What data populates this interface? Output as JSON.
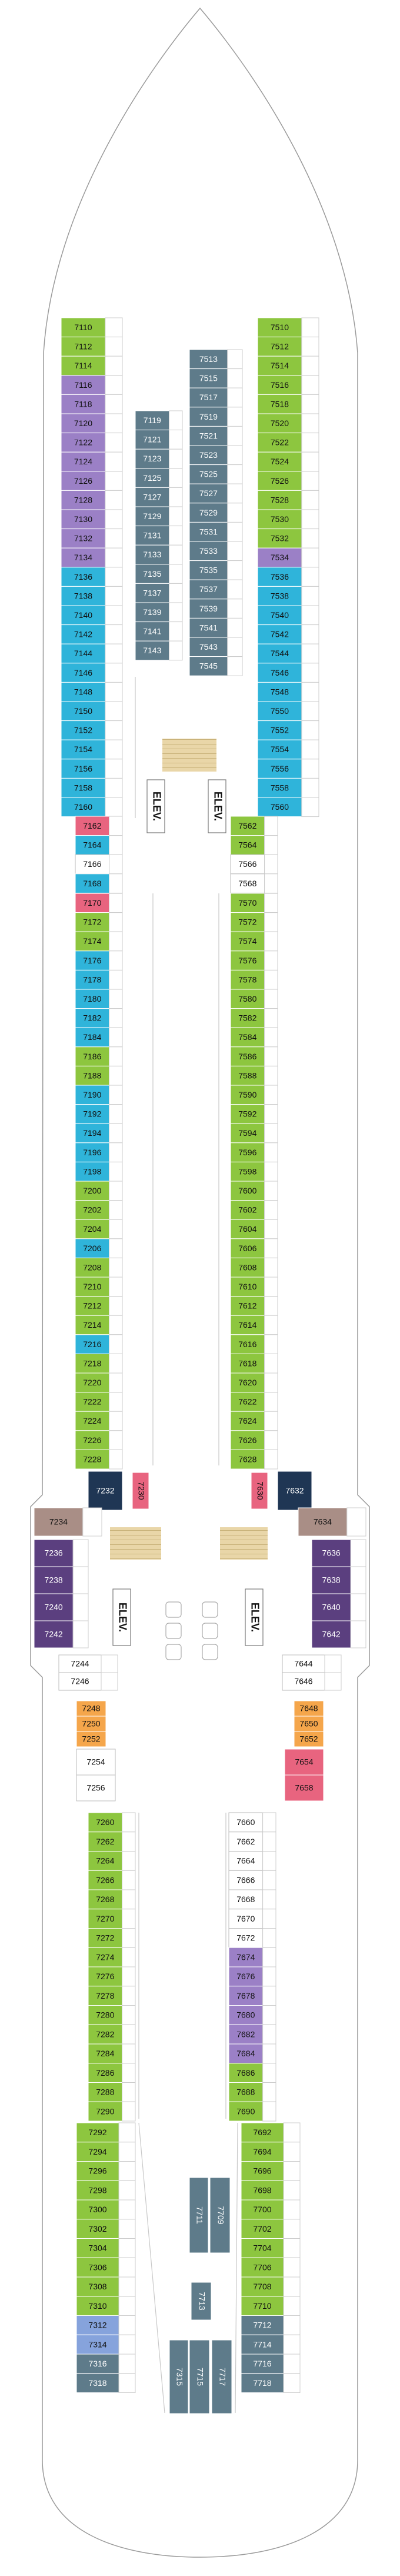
{
  "elevators": [
    "ELEV.",
    "ELEV.",
    "ELEV.",
    "ELEV."
  ],
  "blocks": [
    {
      "cabins": [
        7110,
        7112,
        7114,
        7116,
        7118,
        7120,
        7122,
        7124,
        7126,
        7128,
        7130,
        7132,
        7134,
        7136,
        7138,
        7140,
        7142,
        7144,
        7146,
        7148,
        7150,
        7152,
        7154,
        7156,
        7158,
        7160
      ],
      "colors": [
        "#8dc63f",
        "#8dc63f",
        "#8dc63f",
        "#9b80c6",
        "#9b80c6",
        "#9b80c6",
        "#9b80c6",
        "#9b80c6",
        "#9b80c6",
        "#9b80c6",
        "#9b80c6",
        "#9b80c6",
        "#9b80c6",
        "#2fb4da",
        "#2fb4da",
        "#2fb4da",
        "#2fb4da",
        "#2fb4da",
        "#2fb4da",
        "#2fb4da",
        "#2fb4da",
        "#2fb4da",
        "#2fb4da",
        "#2fb4da",
        "#2fb4da",
        "#2fb4da"
      ]
    },
    {
      "cabins": [
        7510,
        7512,
        7514,
        7516,
        7518,
        7520,
        7522,
        7524,
        7526,
        7528,
        7530,
        7532,
        7534,
        7536,
        7538,
        7540,
        7542,
        7544,
        7546,
        7548,
        7550,
        7552,
        7554,
        7556,
        7558,
        7560
      ],
      "colors": [
        "#8dc63f",
        "#8dc63f",
        "#8dc63f",
        "#8dc63f",
        "#8dc63f",
        "#8dc63f",
        "#8dc63f",
        "#8dc63f",
        "#8dc63f",
        "#8dc63f",
        "#8dc63f",
        "#8dc63f",
        "#9b80c6",
        "#2fb4da",
        "#2fb4da",
        "#2fb4da",
        "#2fb4da",
        "#2fb4da",
        "#2fb4da",
        "#2fb4da",
        "#2fb4da",
        "#2fb4da",
        "#2fb4da",
        "#2fb4da",
        "#2fb4da",
        "#2fb4da"
      ]
    },
    {
      "cabins": [
        7119,
        7121,
        7123,
        7125,
        7127,
        7129,
        7131,
        7133,
        7135,
        7137,
        7139,
        7141,
        7143
      ],
      "color": "#5e7b8a"
    },
    {
      "cabins": [
        7513,
        7515,
        7517,
        7519,
        7521,
        7523,
        7525,
        7527,
        7529,
        7531,
        7533,
        7535,
        7537,
        7539,
        7541,
        7543,
        7545
      ],
      "color": "#5e7b8a"
    },
    {
      "cabins": [
        7162,
        7164,
        7166,
        7168
      ],
      "colors": [
        "#e8647f",
        "#2fb4da",
        "#ffffff",
        "#2fb4da"
      ]
    },
    {
      "cabins": [
        7562,
        7564,
        7566,
        7568
      ],
      "colors": [
        "#8dc63f",
        "#8dc63f",
        "#ffffff",
        "#ffffff"
      ]
    },
    {
      "cabins": [
        7170,
        7172,
        7174,
        7176,
        7178,
        7180,
        7182,
        7184,
        7186,
        7188,
        7190,
        7192,
        7194,
        7196,
        7198,
        7200,
        7202,
        7204,
        7206,
        7208,
        7210,
        7212,
        7214,
        7216,
        7218,
        7220,
        7222,
        7224,
        7226,
        7228
      ],
      "colors": [
        "#e8647f",
        "#8dc63f",
        "#8dc63f",
        "#2fb4da",
        "#2fb4da",
        "#2fb4da",
        "#2fb4da",
        "#2fb4da",
        "#8dc63f",
        "#8dc63f",
        "#2fb4da",
        "#2fb4da",
        "#2fb4da",
        "#2fb4da",
        "#2fb4da",
        "#8dc63f",
        "#8dc63f",
        "#8dc63f",
        "#2fb4da",
        "#8dc63f",
        "#8dc63f",
        "#8dc63f",
        "#8dc63f",
        "#2fb4da",
        "#8dc63f",
        "#8dc63f",
        "#8dc63f",
        "#8dc63f",
        "#8dc63f",
        "#8dc63f"
      ]
    },
    {
      "cabins": [
        7570,
        7572,
        7574,
        7576,
        7578,
        7580,
        7582,
        7584,
        7586,
        7588,
        7590,
        7592,
        7594,
        7596,
        7598,
        7600,
        7602,
        7604,
        7606,
        7608,
        7610,
        7612,
        7614,
        7616,
        7618,
        7620,
        7622,
        7624,
        7626,
        7628
      ],
      "color": "#8dc63f"
    },
    {
      "cabins": [
        7232
      ],
      "color": "#1f3654"
    },
    {
      "cabins": [
        7230
      ],
      "color": "#e8647f"
    },
    {
      "cabins": [
        7630
      ],
      "color": "#e8647f"
    },
    {
      "cabins": [
        7632
      ],
      "color": "#1f3654"
    },
    {
      "cabins": [
        7234
      ],
      "color": "#a98e86"
    },
    {
      "cabins": [
        7236,
        7238,
        7240,
        7242
      ],
      "color": "#5b3f7f"
    },
    {
      "cabins": [
        7244,
        7246
      ],
      "color": "#ffffff"
    },
    {
      "cabins": [
        7634
      ],
      "color": "#a98e86"
    },
    {
      "cabins": [
        7636,
        7638,
        7640,
        7642
      ],
      "color": "#5b3f7f"
    },
    {
      "cabins": [
        7644,
        7646
      ],
      "color": "#ffffff"
    },
    {
      "cabins": [
        7248,
        7250,
        7252
      ],
      "color": "#f5a64b"
    },
    {
      "cabins": [
        7648,
        7650,
        7652
      ],
      "color": "#f5a64b"
    },
    {
      "cabins": [
        7254,
        7256
      ],
      "color": "#ffffff"
    },
    {
      "cabins": [
        7654,
        7658
      ],
      "color": "#e8647f"
    },
    {
      "cabins": [
        7260,
        7262,
        7264,
        7266,
        7268,
        7270,
        7272,
        7274,
        7276,
        7278,
        7280,
        7282,
        7284,
        7286,
        7288,
        7290
      ],
      "color": "#8dc63f"
    },
    {
      "cabins": [
        7660,
        7662,
        7664,
        7666,
        7668,
        7670,
        7672,
        7674,
        7676,
        7678,
        7680,
        7682,
        7684,
        7686,
        7688,
        7690
      ],
      "colors": [
        "#ffffff",
        "#ffffff",
        "#ffffff",
        "#ffffff",
        "#ffffff",
        "#ffffff",
        "#ffffff",
        "#9b80c6",
        "#9b80c6",
        "#9b80c6",
        "#9b80c6",
        "#9b80c6",
        "#9b80c6",
        "#8dc63f",
        "#8dc63f",
        "#8dc63f"
      ]
    },
    {
      "cabins": [
        7292,
        7294,
        7296,
        7298,
        7300,
        7302,
        7304,
        7306,
        7308,
        7310,
        7312,
        7314,
        7316,
        7318
      ],
      "colors": [
        "#8dc63f",
        "#8dc63f",
        "#8dc63f",
        "#8dc63f",
        "#8dc63f",
        "#8dc63f",
        "#8dc63f",
        "#8dc63f",
        "#8dc63f",
        "#8dc63f",
        "#86a3dc",
        "#86a3dc",
        "#5e7b8a",
        "#5e7b8a"
      ]
    },
    {
      "cabins": [
        7692,
        7694,
        7696,
        7698,
        7700,
        7702,
        7704,
        7706,
        7708,
        7710,
        7712,
        7714,
        7716,
        7718
      ],
      "colors": [
        "#8dc63f",
        "#8dc63f",
        "#8dc63f",
        "#8dc63f",
        "#8dc63f",
        "#8dc63f",
        "#8dc63f",
        "#8dc63f",
        "#8dc63f",
        "#8dc63f",
        "#5e7b8a",
        "#5e7b8a",
        "#5e7b8a",
        "#5e7b8a"
      ]
    },
    {
      "cabins": [
        7711
      ],
      "color": "#5e7b8a"
    },
    {
      "cabins": [
        7709
      ],
      "color": "#5e7b8a"
    },
    {
      "cabins": [
        7713
      ],
      "color": "#5e7b8a"
    },
    {
      "cabins": [
        7315
      ],
      "color": "#5e7b8a"
    },
    {
      "cabins": [
        7715
      ],
      "color": "#5e7b8a"
    },
    {
      "cabins": [
        7717
      ],
      "color": "#5e7b8a"
    }
  ]
}
